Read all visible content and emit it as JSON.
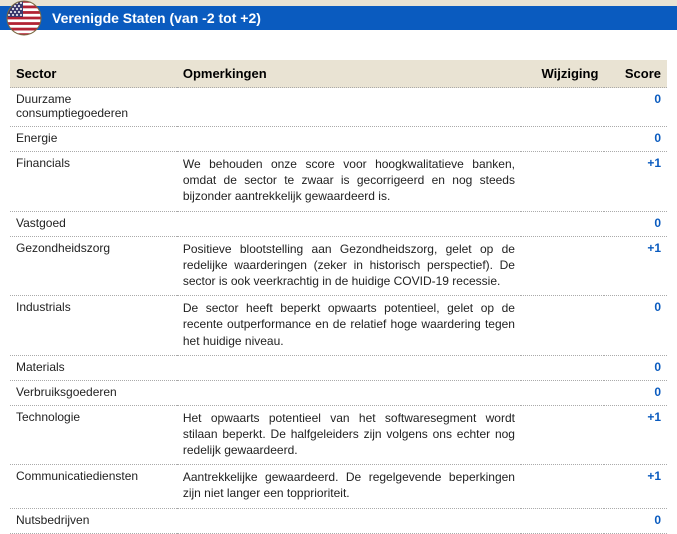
{
  "header": {
    "title": "Verenigde Staten (van -2 tot +2)",
    "bar_color": "#0a5bbf",
    "beige_color": "#e9e3d3",
    "title_color": "#ffffff"
  },
  "table": {
    "header_bg": "#e9e3d3",
    "score_color": "#0a5bbf",
    "columns": {
      "sector": "Sector",
      "remarks": "Opmerkingen",
      "change": "Wijziging",
      "score": "Score"
    },
    "rows": [
      {
        "sector": "Duurzame consumptiegoederen",
        "remarks": "",
        "change": "",
        "score": "0"
      },
      {
        "sector": "Energie",
        "remarks": "",
        "change": "",
        "score": "0"
      },
      {
        "sector": "Financials",
        "remarks": "We behouden onze score voor hoogkwalitatieve banken, omdat de sector te zwaar is gecorrigeerd en nog steeds bijzonder aantrekkelijk gewaardeerd is.",
        "change": "",
        "score": "+1"
      },
      {
        "sector": "Vastgoed",
        "remarks": "",
        "change": "",
        "score": "0"
      },
      {
        "sector": "Gezondheidszorg",
        "remarks": "Positieve blootstelling aan Gezondheidszorg, gelet op de redelijke waarderingen (zeker in historisch perspectief). De sector is ook veerkrachtig in de huidige COVID-19 recessie.",
        "change": "",
        "score": "+1"
      },
      {
        "sector": "Industrials",
        "remarks": "De sector heeft beperkt opwaarts potentieel, gelet op de recente outperformance en de relatief hoge waardering tegen het huidige niveau.",
        "change": "",
        "score": "0"
      },
      {
        "sector": "Materials",
        "remarks": "",
        "change": "",
        "score": "0"
      },
      {
        "sector": "Verbruiksgoederen",
        "remarks": "",
        "change": "",
        "score": "0"
      },
      {
        "sector": "Technologie",
        "remarks": "Het opwaarts potentieel van het softwaresegment wordt stilaan beperkt. De halfgeleiders zijn volgens ons echter nog redelijk gewaardeerd.",
        "change": "",
        "score": "+1"
      },
      {
        "sector": "Communicatiediensten",
        "remarks": "Aantrekkelijke gewaardeerd. De regelgevende beperkingen zijn niet langer een topprioriteit.",
        "change": "",
        "score": "+1"
      },
      {
        "sector": "Nutsbedrijven",
        "remarks": "",
        "change": "",
        "score": "0"
      }
    ]
  }
}
